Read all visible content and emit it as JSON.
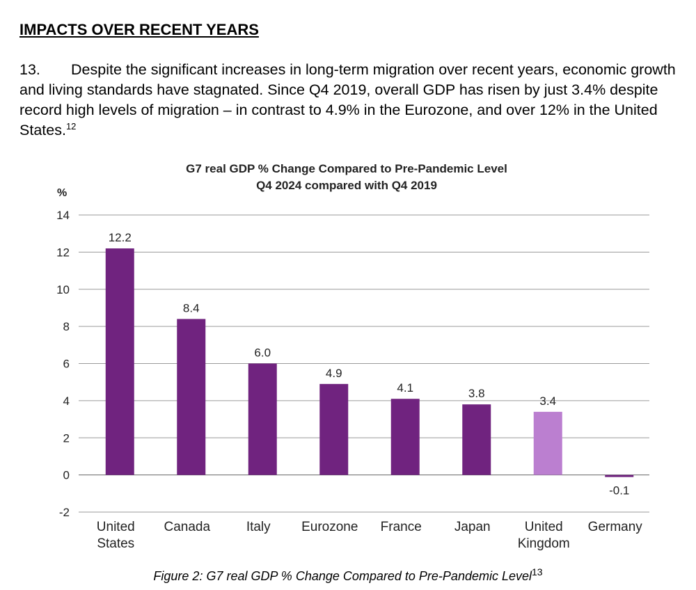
{
  "heading": "IMPACTS OVER RECENT YEARS",
  "paragraph": {
    "number": "13.",
    "text": "Despite the significant increases in long-term migration over recent years, economic growth and living standards have stagnated. Since Q4 2019, overall GDP has risen by just 3.4% despite record high levels of migration – in contrast to 4.9% in the Eurozone, and over 12% in the United States.",
    "footnote": "12"
  },
  "chart_data": {
    "type": "bar",
    "title": "G7 real GDP % Change Compared to Pre-Pandemic Level",
    "subtitle": "Q4 2024 compared with Q4 2019",
    "ylabel": "%",
    "xlabel": "",
    "ylim": [
      -2,
      14
    ],
    "yticks": [
      14,
      12,
      10,
      8,
      6,
      4,
      2,
      0,
      -2
    ],
    "grid": true,
    "categories": [
      [
        "United",
        "States"
      ],
      [
        "Canada"
      ],
      [
        "Italy"
      ],
      [
        "Eurozone"
      ],
      [
        "France"
      ],
      [
        "Japan"
      ],
      [
        "United",
        "Kingdom"
      ],
      [
        "Germany"
      ]
    ],
    "values": [
      12.2,
      8.4,
      6.0,
      4.9,
      4.1,
      3.8,
      3.4,
      -0.1
    ],
    "value_labels": [
      "12.2",
      "8.4",
      "6.0",
      "4.9",
      "4.1",
      "3.8",
      "3.4",
      "-0.1"
    ],
    "colors": [
      "#70237f",
      "#70237f",
      "#70237f",
      "#70237f",
      "#70237f",
      "#70237f",
      "#bb7fd0",
      "#70237f"
    ]
  },
  "caption": {
    "text": "Figure 2: G7 real GDP % Change Compared to Pre-Pandemic Level",
    "footnote": "13"
  }
}
